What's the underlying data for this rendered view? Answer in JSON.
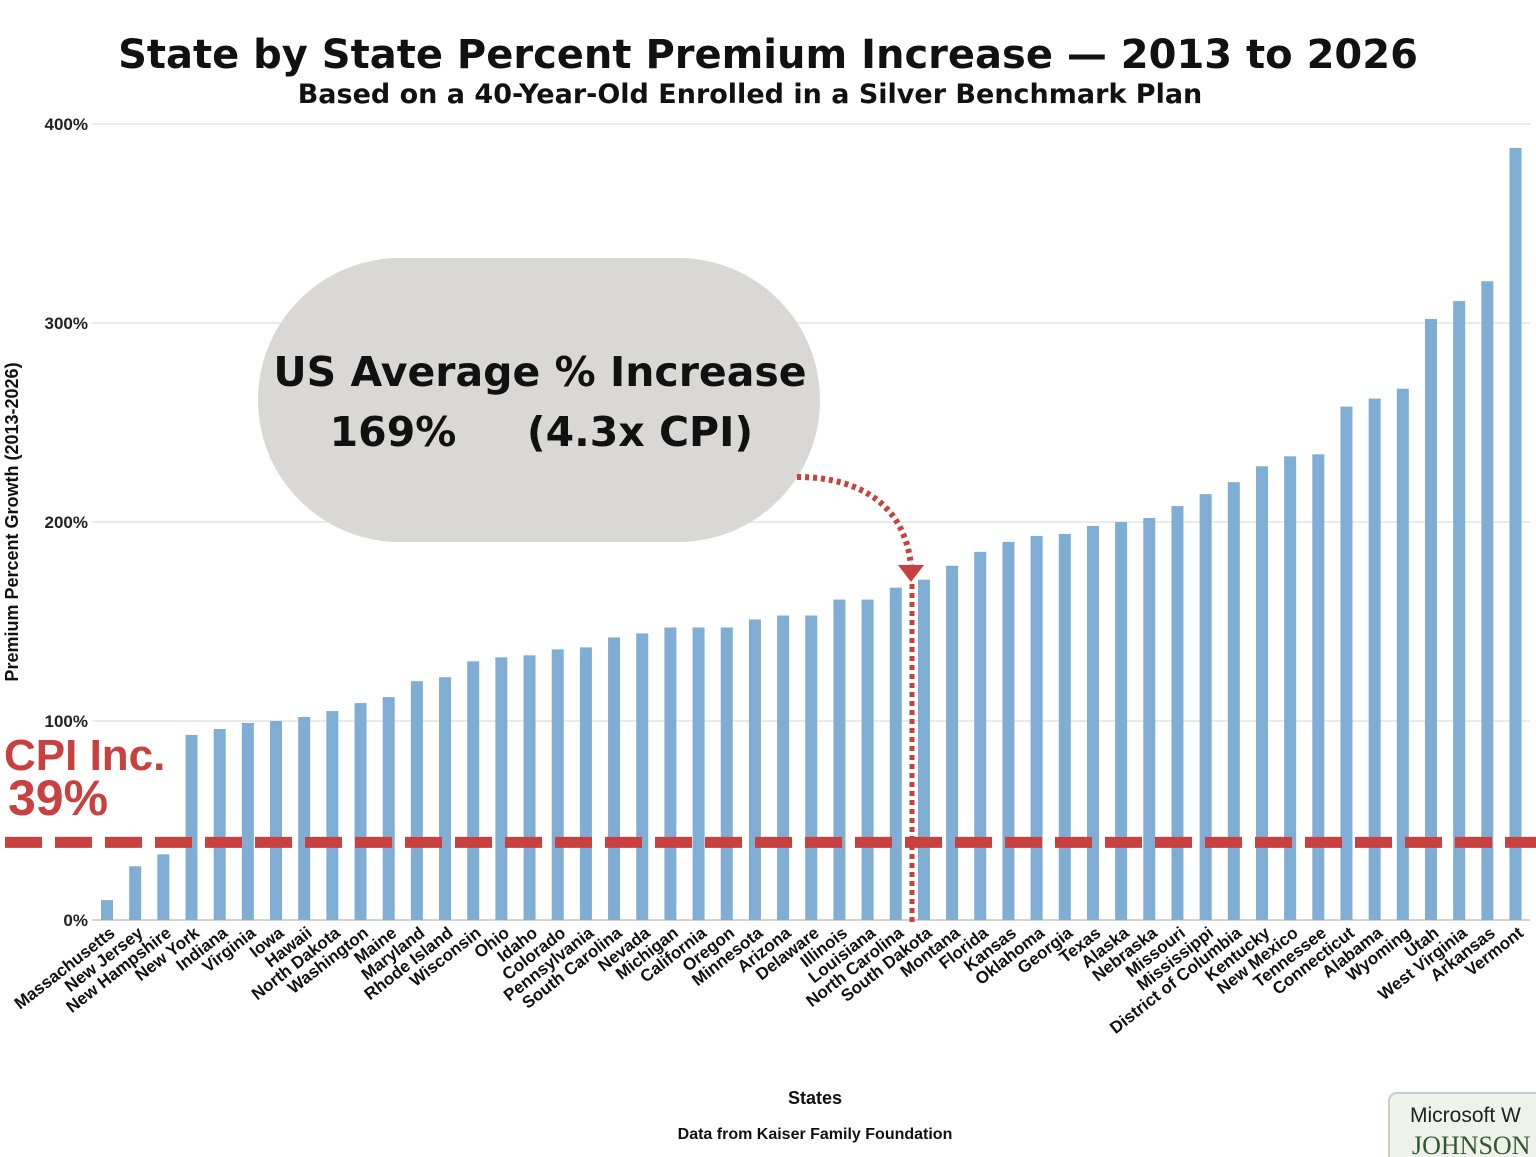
{
  "chart_data": {
    "type": "bar",
    "title": "State by State Percent Premium Increase — 2013 to 2026",
    "subtitle": "Based on a 40-Year-Old Enrolled in a Silver Benchmark Plan",
    "xlabel": "States",
    "ylabel": "Premium Percent Growth (2013-2026)",
    "source": "Data from Kaiser Family Foundation",
    "ylim": [
      0,
      400
    ],
    "y_ticks": [
      "0%",
      "100%",
      "200%",
      "300%",
      "400%"
    ],
    "y_tick_values": [
      0,
      100,
      200,
      300,
      400
    ],
    "grid": true,
    "bar_color": "#7fadd4",
    "categories": [
      "Massachusetts",
      "New Jersey",
      "New Hampshire",
      "New York",
      "Indiana",
      "Virginia",
      "Iowa",
      "Hawaii",
      "North Dakota",
      "Washington",
      "Maine",
      "Maryland",
      "Rhode Island",
      "Wisconsin",
      "Ohio",
      "Idaho",
      "Colorado",
      "Pennsylvania",
      "South Carolina",
      "Nevada",
      "Michigan",
      "California",
      "Oregon",
      "Minnesota",
      "Arizona",
      "Delaware",
      "Illinois",
      "Louisiana",
      "North Carolina",
      "South Dakota",
      "Montana",
      "Florida",
      "Kansas",
      "Oklahoma",
      "Georgia",
      "Texas",
      "Alaska",
      "Nebraska",
      "Missouri",
      "Mississippi",
      "District of Columbia",
      "Kentucky",
      "New Mexico",
      "Tennessee",
      "Connecticut",
      "Alabama",
      "Wyoming",
      "Utah",
      "West Virginia",
      "Arkansas",
      "Vermont"
    ],
    "values": [
      10,
      27,
      33,
      93,
      96,
      99,
      100,
      102,
      105,
      109,
      112,
      120,
      122,
      130,
      132,
      133,
      136,
      137,
      142,
      144,
      147,
      147,
      147,
      151,
      153,
      153,
      161,
      161,
      167,
      171,
      178,
      185,
      190,
      193,
      194,
      198,
      200,
      202,
      208,
      214,
      220,
      228,
      233,
      234,
      258,
      262,
      267,
      302,
      311,
      321,
      388
    ],
    "annotations": {
      "us_average": {
        "line1": "US Average % Increase",
        "value": "169%",
        "ratio": "(4.3x CPI)",
        "bubble_color": "#d9d8d5",
        "marker_color": "#c9403e"
      },
      "cpi": {
        "line1": "CPI Inc.",
        "line2": "39%",
        "value": 39,
        "color": "#c9403e"
      }
    }
  },
  "corner_overlay": {
    "label": "Microsoft W",
    "brand": "JOHNSON"
  }
}
